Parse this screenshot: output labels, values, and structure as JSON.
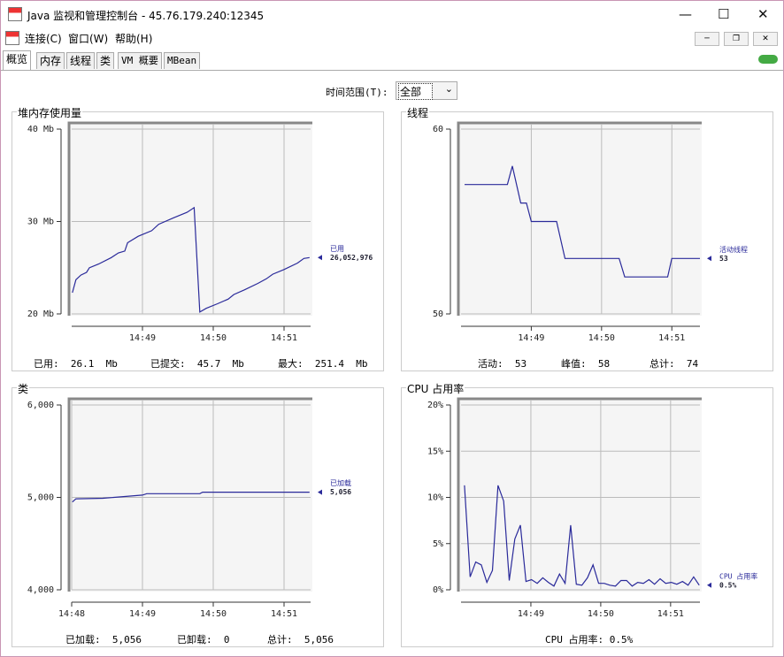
{
  "window": {
    "title": "Java 监视和管理控制台 - 45.76.179.240:12345"
  },
  "menu": [
    "连接(C)",
    "窗口(W)",
    "帮助(H)"
  ],
  "tabs": [
    "概览",
    "内存",
    "线程",
    "类",
    "VM 概要",
    "MBean"
  ],
  "time_range": {
    "label": "时间范围(T):",
    "value": "全部"
  },
  "chart_data": [
    {
      "type": "line",
      "title": "堆内存使用量",
      "x": [
        888.01,
        888.06,
        888.13,
        888.21,
        888.25,
        888.38,
        888.56,
        888.66,
        888.75,
        888.79,
        888.94,
        889.13,
        889.23,
        889.44,
        889.63,
        889.73,
        889.81,
        889.9,
        890.06,
        890.21,
        890.29,
        890.44,
        890.63,
        890.75,
        890.84,
        891.0,
        891.19,
        891.28,
        891.36
      ],
      "series": [
        {
          "name": "已用",
          "color": "#2a2a9a",
          "current_label": "26,052,976",
          "values": [
            22.3,
            23.7,
            24.2,
            24.5,
            25,
            25.4,
            26.1,
            26.6,
            26.8,
            27.7,
            28.4,
            29,
            29.7,
            30.4,
            31,
            31.5,
            20.2,
            20.6,
            21.1,
            21.6,
            22.1,
            22.6,
            23.3,
            23.8,
            24.3,
            24.8,
            25.5,
            26,
            26.1
          ]
        }
      ],
      "xlim": [
        888,
        891.375
      ],
      "xticks": [
        {
          "value": 889,
          "label": "14:49"
        },
        {
          "value": 890,
          "label": "14:50"
        },
        {
          "value": 891,
          "label": "14:51"
        }
      ],
      "ylim": [
        20,
        40
      ],
      "yticks": [
        {
          "value": 20,
          "label": "20 Mb"
        },
        {
          "value": 30,
          "label": "30 Mb"
        },
        {
          "value": 40,
          "label": "40 Mb"
        }
      ],
      "grid": true,
      "footer": [
        "已用:  26.1  Mb",
        "已提交:  45.7  Mb",
        "最大:  251.4  Mb"
      ]
    },
    {
      "type": "line",
      "title": "线程",
      "x": [
        888.05,
        888.66,
        888.73,
        888.85,
        888.93,
        889.0,
        889.36,
        889.48,
        890.25,
        890.33,
        890.94,
        891.0,
        891.4
      ],
      "series": [
        {
          "name": "活动线程",
          "color": "#2a2a9a",
          "current_label": "53",
          "values": [
            57,
            57,
            58,
            56,
            56,
            55,
            55,
            53,
            53,
            52,
            52,
            53,
            53
          ]
        }
      ],
      "xlim": [
        888,
        891.4
      ],
      "xticks": [
        {
          "value": 889,
          "label": "14:49"
        },
        {
          "value": 890,
          "label": "14:50"
        },
        {
          "value": 891,
          "label": "14:51"
        }
      ],
      "ylim": [
        50,
        60
      ],
      "yticks": [
        50,
        60
      ],
      "grid": true,
      "footer": [
        "活动:  53",
        "峰值:  58",
        "总计:  74"
      ]
    },
    {
      "type": "line",
      "title": "类",
      "x": [
        888.01,
        888.06,
        888.44,
        888.75,
        889.0,
        889.06,
        889.81,
        889.85,
        891.36
      ],
      "series": [
        {
          "name": "已加载",
          "color": "#2a2a9a",
          "current_label": "5,056",
          "values": [
            4950,
            4985,
            4990,
            5010,
            5025,
            5040,
            5040,
            5056,
            5056
          ]
        }
      ],
      "xlim": [
        888,
        891.375
      ],
      "xticks": [
        {
          "value": 888,
          "label": "14:48"
        },
        {
          "value": 889,
          "label": "14:49"
        },
        {
          "value": 890,
          "label": "14:50"
        },
        {
          "value": 891,
          "label": "14:51"
        }
      ],
      "ylim": [
        4000,
        6000
      ],
      "yticks": [
        {
          "value": 4000,
          "label": "4,000"
        },
        {
          "value": 5000,
          "label": "5,000"
        },
        {
          "value": 6000,
          "label": "6,000"
        }
      ],
      "grid": true,
      "footer": [
        "已加载:  5,056",
        "已卸载:  0",
        "总计:  5,056"
      ]
    },
    {
      "type": "line",
      "title": "CPU 占用率",
      "x": [
        888.05,
        888.13,
        888.21,
        888.29,
        888.37,
        888.45,
        888.53,
        888.61,
        888.69,
        888.77,
        888.85,
        888.93,
        889.01,
        889.09,
        889.17,
        889.25,
        889.33,
        889.41,
        889.49,
        889.57,
        889.65,
        889.73,
        889.81,
        889.89,
        889.97,
        890.05,
        890.13,
        890.21,
        890.29,
        890.37,
        890.45,
        890.53,
        890.61,
        890.69,
        890.77,
        890.85,
        890.93,
        891.01,
        891.09,
        891.17,
        891.25,
        891.33,
        891.41
      ],
      "series": [
        {
          "name": "CPU 占用率",
          "color": "#2a2a9a",
          "current_label": "0.5%",
          "values": [
            11.3,
            1.4,
            3,
            2.7,
            0.8,
            2.1,
            11.3,
            9.6,
            1,
            5.5,
            7,
            0.9,
            1.1,
            0.7,
            1.3,
            0.8,
            0.4,
            1.7,
            0.7,
            7,
            0.6,
            0.5,
            1.3,
            2.7,
            0.7,
            0.7,
            0.5,
            0.4,
            1,
            1,
            0.4,
            0.8,
            0.7,
            1.1,
            0.6,
            1.2,
            0.7,
            0.8,
            0.6,
            0.9,
            0.5,
            1.4,
            0.5
          ]
        }
      ],
      "xlim": [
        888,
        891.42
      ],
      "xticks": [
        {
          "value": 889,
          "label": "14:49"
        },
        {
          "value": 890,
          "label": "14:50"
        },
        {
          "value": 891,
          "label": "14:51"
        }
      ],
      "ylim": [
        0,
        20
      ],
      "yticks": [
        {
          "value": 0,
          "label": "0%"
        },
        {
          "value": 5,
          "label": "5%"
        },
        {
          "value": 10,
          "label": "10%"
        },
        {
          "value": 15,
          "label": "15%"
        },
        {
          "value": 20,
          "label": "20%"
        }
      ],
      "grid": true,
      "footer": [
        "CPU 占用率: 0.5%"
      ]
    }
  ]
}
